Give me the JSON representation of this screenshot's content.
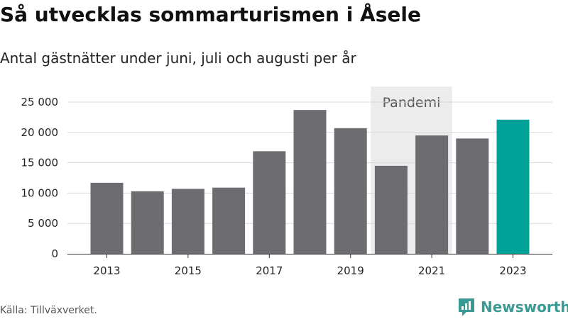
{
  "header": {
    "title": "Så utvecklas sommarturismen i Åsele",
    "subtitle": "Antal gästnätter under juni, juli och augusti per år"
  },
  "footer": {
    "source": "Källa: Tillväxverket.",
    "brand": "Newsworthy",
    "brand_icon": "newsworthy-logo-icon"
  },
  "colors": {
    "bar": "#6d6c71",
    "highlight": "#00a297",
    "band": "#ececec",
    "grid": "#d9d9d9",
    "brand": "#3a9a93"
  },
  "chart_data": {
    "type": "bar",
    "title": "Så utvecklas sommarturismen i Åsele",
    "subtitle": "Antal gästnätter under juni, juli och augusti per år",
    "categories": [
      "2013",
      "2014",
      "2015",
      "2016",
      "2017",
      "2018",
      "2019",
      "2020",
      "2021",
      "2022",
      "2023"
    ],
    "values": [
      11700,
      10300,
      10700,
      10900,
      16900,
      23700,
      20700,
      14500,
      19500,
      19000,
      22100
    ],
    "highlight_category": "2023",
    "x_tick_labels": [
      "2013",
      "2015",
      "2017",
      "2019",
      "2021",
      "2023"
    ],
    "y_ticks": [
      0,
      5000,
      10000,
      15000,
      20000,
      25000
    ],
    "y_tick_labels": [
      "0",
      "5 000",
      "10 000",
      "15 000",
      "20 000",
      "25 000"
    ],
    "ylim": [
      0,
      25000
    ],
    "grid": true,
    "annotations": [
      {
        "label": "Pandemi",
        "from": "2020",
        "to": "2021"
      }
    ],
    "xlabel": "",
    "ylabel": ""
  }
}
